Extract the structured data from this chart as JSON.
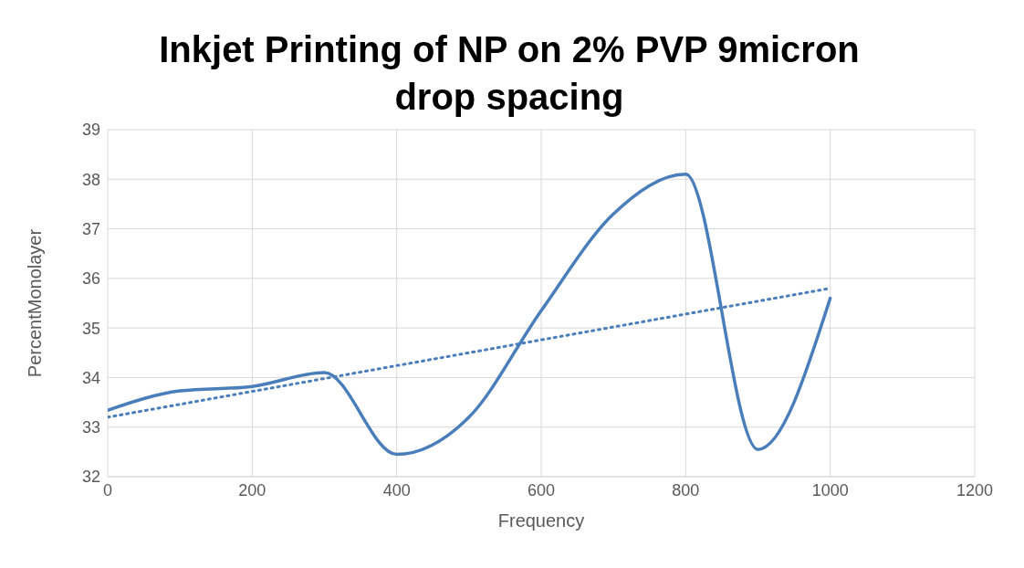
{
  "chart_data": {
    "type": "line",
    "title": "Inkjet Printing of NP on 2% PVP 9micron drop spacing",
    "xlabel": "Frequency",
    "ylabel": "PercentMonolayer",
    "xlim": [
      0,
      1200
    ],
    "xticks": [
      0,
      200,
      400,
      600,
      800,
      1000,
      1200
    ],
    "ylim": [
      32,
      39
    ],
    "yticks": [
      32,
      33,
      34,
      35,
      36,
      37,
      38,
      39
    ],
    "grid": true,
    "marker": "none",
    "series": [
      {
        "color": "#4a7ebb",
        "line_style": "solid",
        "x": [
          0,
          100,
          200,
          300,
          400,
          500,
          600,
          700,
          800,
          900,
          1000
        ],
        "values": [
          33.34,
          33.73,
          33.82,
          34.1,
          32.45,
          33.2,
          35.35,
          37.3,
          38.1,
          32.55,
          35.6
        ]
      },
      {
        "type": "line",
        "color": "#4a7ebb",
        "line_style": "dotted",
        "x": [
          0,
          1000
        ],
        "values": [
          33.2,
          35.8
        ]
      }
    ]
  }
}
